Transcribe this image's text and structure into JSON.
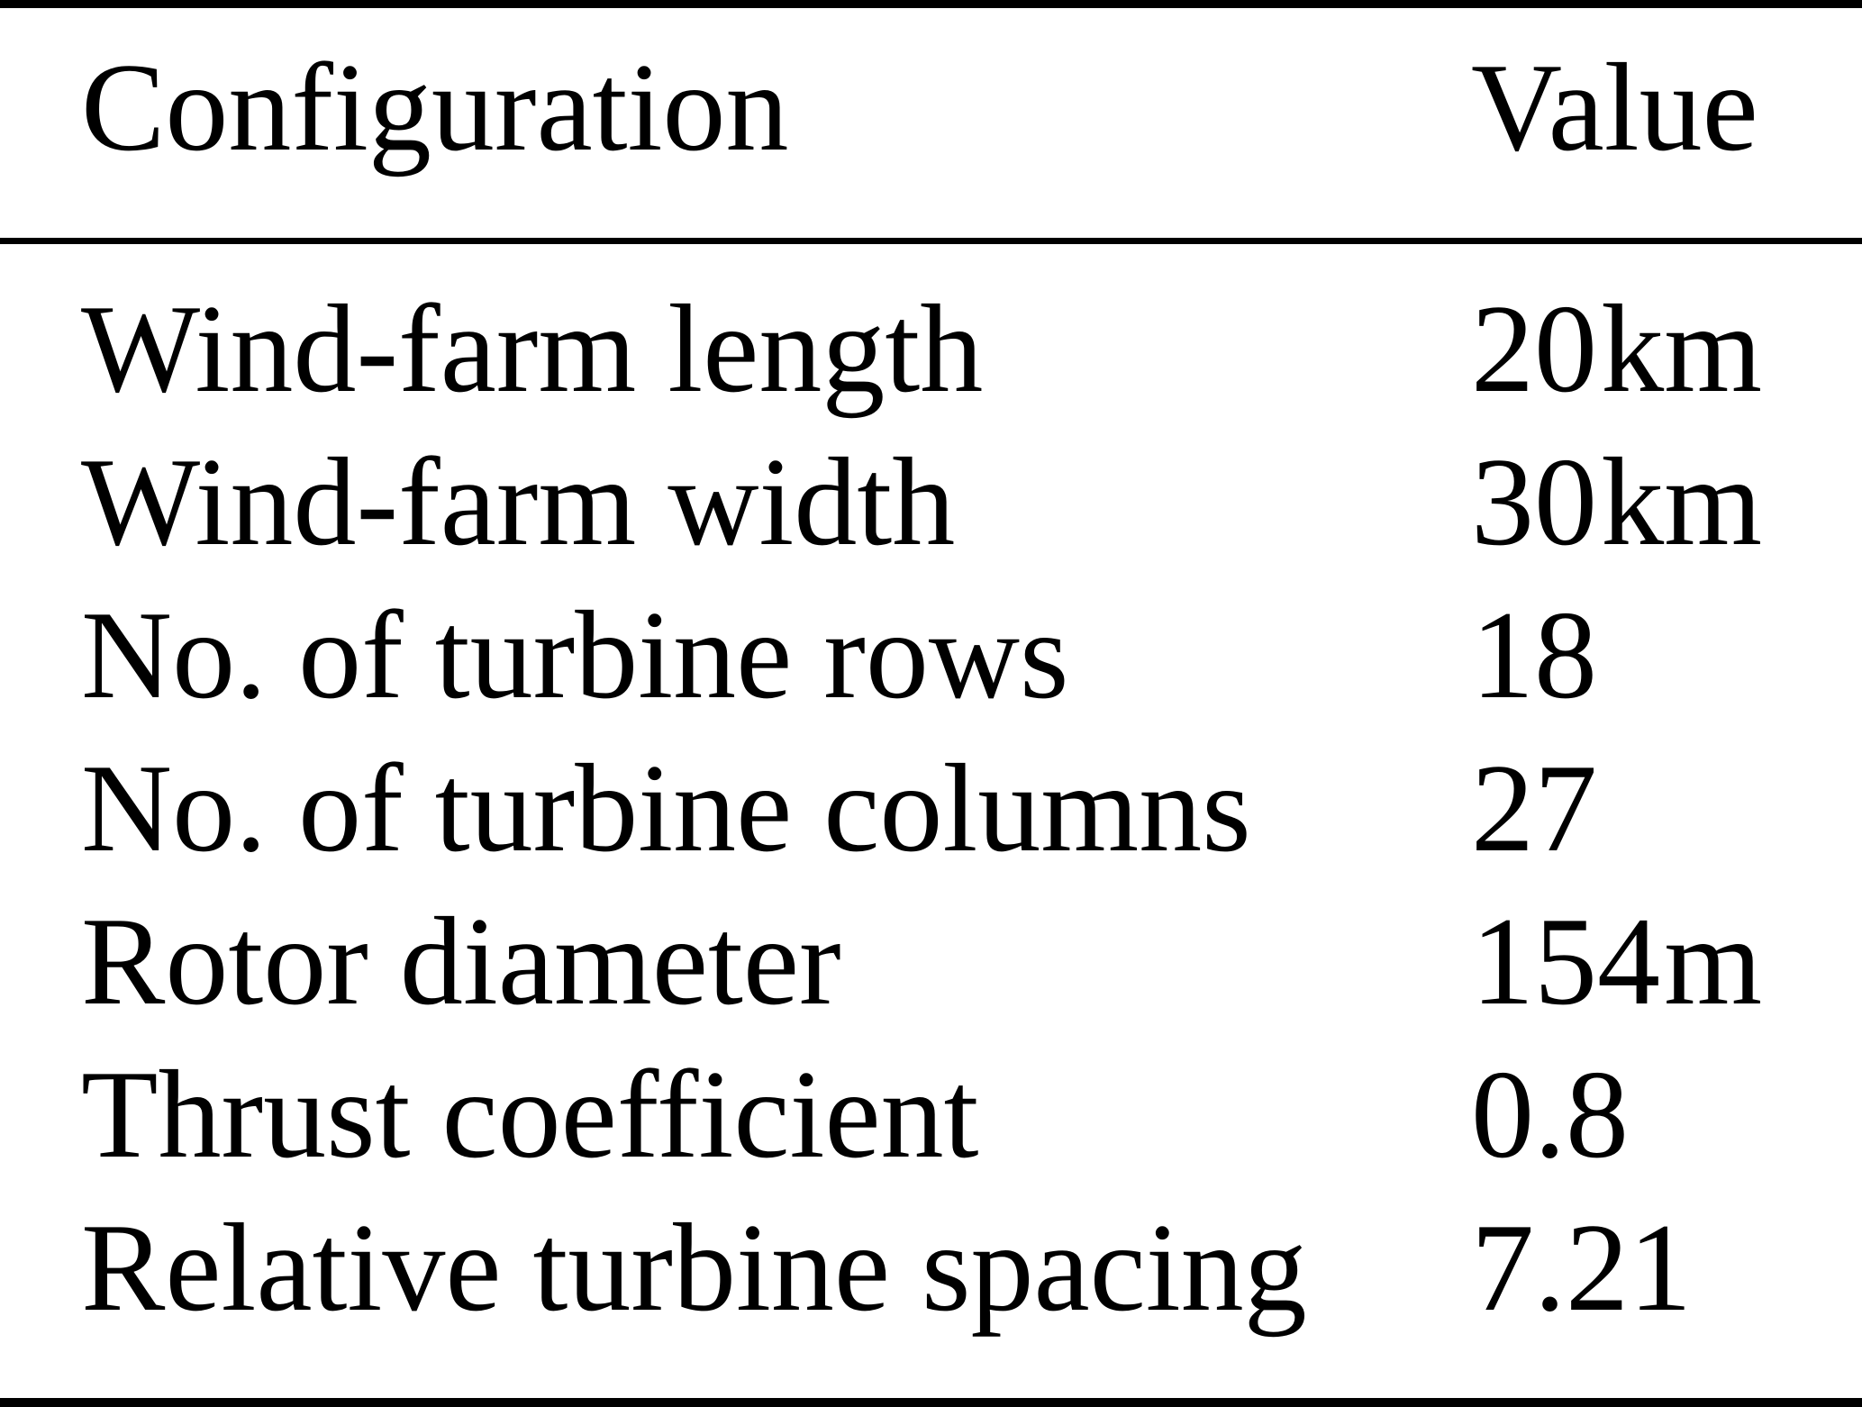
{
  "table": {
    "columns": {
      "config_header": "Configuration",
      "value_header": "Value"
    },
    "rows": [
      {
        "label": "Wind-farm length",
        "value": "20 km"
      },
      {
        "label": "Wind-farm width",
        "value": "30 km"
      },
      {
        "label": "No. of turbine rows",
        "value": "18"
      },
      {
        "label": "No. of turbine columns",
        "value": "27"
      },
      {
        "label": "Rotor diameter",
        "value": "154 m"
      },
      {
        "label": "Thrust coefficient",
        "value": "0.8"
      },
      {
        "label": "Relative turbine spacing",
        "value": "7.21"
      }
    ]
  },
  "colors": {
    "text": "#000000",
    "background": "#ffffff",
    "rule": "#000000"
  }
}
